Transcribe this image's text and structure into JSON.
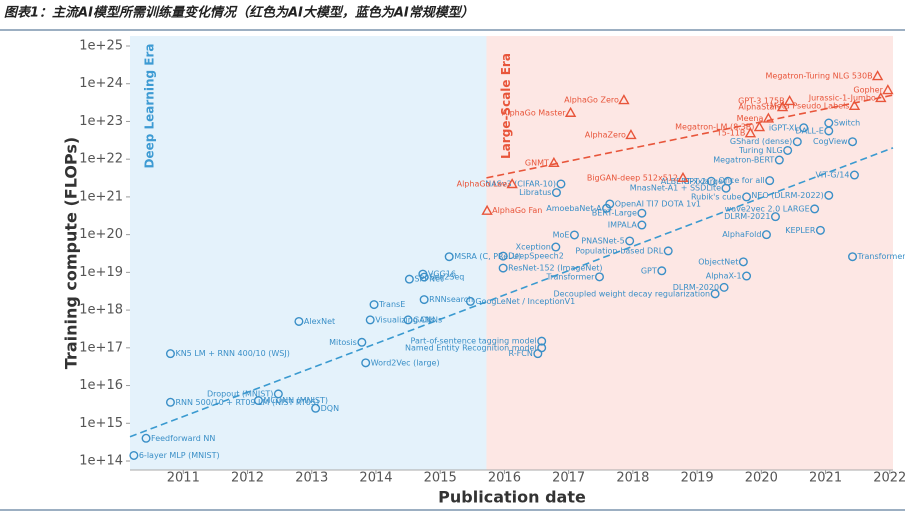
{
  "chart_data": {
    "type": "scatter",
    "title": "图表1：主流AI模型所需训练量变化情况（红色为AI大模型，蓝色为AI常规模型）",
    "xlabel": "Publication date",
    "ylabel": "Training compute (FLOPs)",
    "ylog": true,
    "xlim": [
      2010.17,
      2022.05
    ],
    "ylim": [
      100000000000000.0,
      1e+25
    ],
    "xticks": [
      2011,
      2012,
      2013,
      2014,
      2015,
      2016,
      2017,
      2018,
      2019,
      2020,
      2021,
      2022
    ],
    "yticks": [
      {
        "value": 100000000000000.0,
        "label": "1e+14"
      },
      {
        "value": 1000000000000000.0,
        "label": "1e+15"
      },
      {
        "value": 1e+16,
        "label": "1e+16"
      },
      {
        "value": 1e+17,
        "label": "1e+17"
      },
      {
        "value": 1e+18,
        "label": "1e+18"
      },
      {
        "value": 1e+19,
        "label": "1e+19"
      },
      {
        "value": 1e+20,
        "label": "1e+20"
      },
      {
        "value": 1e+21,
        "label": "1e+21"
      },
      {
        "value": 1e+22,
        "label": "1e+22"
      },
      {
        "value": 1e+23,
        "label": "1e+23"
      },
      {
        "value": 1e+24,
        "label": "1e+24"
      },
      {
        "value": 1e+25,
        "label": "1e+25"
      }
    ],
    "eras": [
      {
        "label": "Deep Learning Era",
        "color": "#e4f2fb",
        "label_color": "#3d9bd3",
        "x": [
          2010.17,
          2015.72
        ]
      },
      {
        "label": "Large-Scale Era",
        "color": "#fde7e4",
        "label_color": "#e8553a",
        "x": [
          2015.72,
          2022.05
        ]
      }
    ],
    "trend_lines": [
      {
        "color": "#3a9ad0",
        "x": [
          2010.17,
          2022.05
        ],
        "values": [
          440000000000000.0,
          2e+22
        ]
      },
      {
        "color": "#e8553a",
        "x": [
          2015.72,
          2022.05
        ],
        "values": [
          3.2e+21,
          5e+23
        ]
      }
    ],
    "series": [
      {
        "color": "#3a8fc7",
        "marker": "circle",
        "x": [
          2010.23,
          2010.42,
          2010.8,
          2010.8,
          2012.17,
          2012.48,
          2012.8,
          2013.06,
          2013.78,
          2013.84,
          2013.97,
          2013.91,
          2014.5,
          2014.52,
          2014.73,
          2014.75,
          2014.75,
          2015.47,
          2015.14,
          2015.98,
          2015.98,
          2016.8,
          2017.09,
          2016.58,
          2016.58,
          2016.52,
          2016.88,
          2016.81,
          2017.64,
          2017.59,
          2018.14,
          2018.14,
          2017.95,
          2018.55,
          2017.48,
          2018.45,
          2019.28,
          2019.42,
          2019.77,
          2019.72,
          2021.42,
          2020.92,
          2020.08,
          2020.22,
          2020.83,
          2019.45,
          2019.77,
          2020.13,
          2021.05,
          2019.22,
          2019.48,
          2020.41,
          2020.28,
          2020.56,
          2020.66,
          2021.05,
          2021.05,
          2021.42,
          2021.45
        ],
        "values": [
          140000000000000.0,
          400000000000000.0,
          7e+16,
          3600000000000000.0,
          4000000000000000.0,
          6000000000000000.0,
          5e+17,
          2500000000000000.0,
          1.4e+17,
          4e+16,
          1.4e+18,
          5.5e+17,
          5.5e+17,
          6.6e+18,
          9e+18,
          7.5e+18,
          1.9e+18,
          1.7e+18,
          2.6e+19,
          2.7e+19,
          1.3e+19,
          4.7e+19,
          9.8e+19,
          1.5e+17,
          1e+17,
          7e+16,
          2.2e+21,
          1.3e+21,
          6.5e+20,
          5e+20,
          3.7e+20,
          1.8e+20,
          6.8e+19,
          3.7e+19,
          7.6e+18,
          1.1e+19,
          2.7e+18,
          4e+18,
          8e+18,
          1.9e+19,
          2.6e+19,
          1.3e+20,
          1e+20,
          3e+20,
          4.8e+20,
          1.7e+21,
          1e+21,
          2.7e+21,
          1.1e+21,
          2.6e+21,
          2.6e+21,
          1.7e+22,
          9.5e+21,
          2.9e+22,
          6.8e+22,
          5.6e+22,
          9.1e+22,
          2.9e+22,
          3.8e+21
        ],
        "labels": [
          "6-layer MLP (MNIST)",
          "Feedforward NN",
          "KN5 LM + RNN 400/10 (WSJ)",
          "RNN 500/10 + RT09 LM (NIST RT05)",
          "MCDNN (MNIST)",
          "Dropout (MNIST)",
          "AlexNet",
          "DQN",
          "Mitosis",
          "Word2Vec (large)",
          "TransE",
          "Visualizing CNNs",
          "GANs",
          "SPPNet",
          "VGG16",
          "Seq2Seq",
          "RNNsearch",
          "GoogLeNet / InceptionV1",
          "MSRA (C, PReLU)",
          "DeepSpeech2",
          "ResNet-152 (ImageNet)",
          "Xception",
          "MoE",
          "Part-of-sentence tagging model",
          "Named Entity Recognition model",
          "R-FCN",
          "NASv3 (CIFAR-10)",
          "Libratus",
          "OpenAI TI7 DOTA 1v1",
          "AmoebaNet-A",
          "BERT-Large",
          "IMPALA",
          "PNASNet-5",
          "Population-based DRL",
          "Transformer",
          "GPT",
          "Decoupled weight decay regularization",
          "DLRM-2020",
          "AlphaX-1",
          "ObjectNet",
          "Transformer local-attention (NesT-B)",
          "KEPLER",
          "AlphaFold",
          "DLRM-2021",
          "wave2vec 2.0 LARGE",
          "MnasNet-A1 + SSDLite",
          "Rubik's cube",
          "Once for all",
          "NEO (DLRM-2022)",
          "GPT-2",
          "ALBERT-xxlarge",
          "Turing NLG",
          "Megatron-BERT",
          "GShard (dense)",
          "iGPT-XL",
          "DALL-E",
          "Switch",
          "CogView",
          "ViT-G/14"
        ]
      },
      {
        "color": "#e8553a",
        "marker": "triangle",
        "x": [
          2017.86,
          2017.03,
          2017.97,
          2016.77,
          2016.12,
          2015.73,
          2018.78,
          2021.81,
          2021.97,
          2021.86,
          2021.45,
          2020.44,
          2020.33,
          2020.11,
          2019.97,
          2019.83
        ],
        "values": [
          3.7e+23,
          1.7e+23,
          4.4e+22,
          8e+21,
          2.2e+21,
          4.3e+20,
          3.2e+21,
          1.6e+24,
          6.8e+23,
          4.2e+23,
          2.6e+23,
          3.5e+23,
          2.4e+23,
          1.2e+23,
          7.1e+22,
          4.9e+22
        ],
        "labels": [
          "AlphaGo Zero",
          "AlphaGo Master",
          "AlphaZero",
          "GNMT",
          "AlphaGo Lee",
          "AlphaGo Fan",
          "BigGAN-deep 512x512",
          "Megatron-Turing NLG 530B",
          "Gopher",
          "Jurassic-1-Jumbo",
          "Meta Pseudo Labels",
          "GPT-3 175B",
          "AlphaStar",
          "Meena",
          "Megatron-LM (8.3B)",
          "T5-11B"
        ]
      }
    ]
  }
}
